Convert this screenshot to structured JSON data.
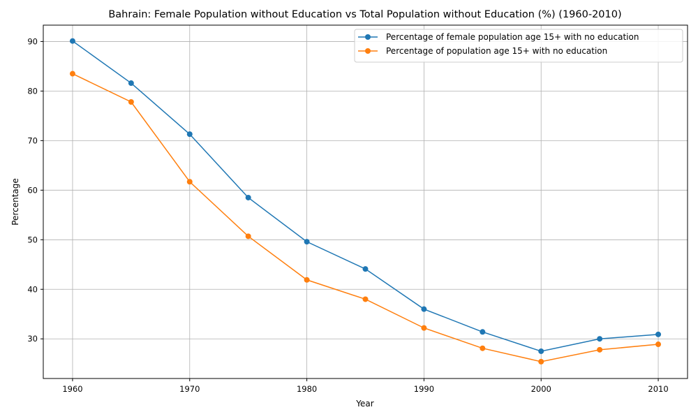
{
  "chart_data": {
    "type": "line",
    "title": "Bahrain: Female Population without Education vs Total Population without Education (%) (1960-2010)",
    "xlabel": "Year",
    "ylabel": "Percentage",
    "x": [
      1960,
      1965,
      1970,
      1975,
      1980,
      1985,
      1990,
      1995,
      2000,
      2005,
      2010
    ],
    "xlim": [
      1957.5,
      2012.5
    ],
    "ylim": [
      22,
      93.3
    ],
    "xticks": [
      1960,
      1970,
      1980,
      1990,
      2000,
      2010
    ],
    "yticks": [
      30,
      40,
      50,
      60,
      70,
      80,
      90
    ],
    "grid": true,
    "legend_position": "top-right",
    "series": [
      {
        "name": "Percentage of female population age 15+ with no education",
        "color": "#1f77b4",
        "values": [
          90.1,
          81.6,
          71.3,
          58.5,
          49.6,
          44.1,
          36.0,
          31.4,
          27.5,
          30.0,
          30.9
        ]
      },
      {
        "name": "Percentage of population age 15+ with no education",
        "color": "#ff7f0e",
        "values": [
          83.5,
          77.8,
          61.7,
          50.7,
          41.9,
          38.0,
          32.2,
          28.1,
          25.4,
          27.8,
          28.9
        ]
      }
    ]
  }
}
